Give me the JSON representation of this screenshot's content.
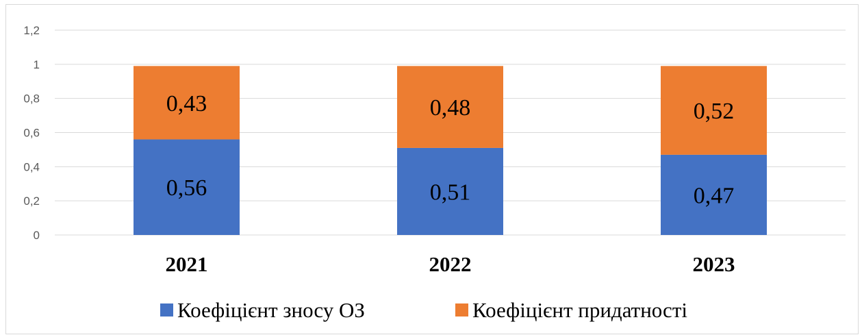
{
  "chart_data": {
    "type": "bar",
    "stacked": true,
    "categories": [
      "2021",
      "2022",
      "2023"
    ],
    "series": [
      {
        "name": "Коефіцієнт зносу ОЗ",
        "values": [
          0.56,
          0.51,
          0.47
        ],
        "labels": [
          "0,56",
          "0,51",
          "0,47"
        ],
        "color": "#4472C4"
      },
      {
        "name": "Коефіцієнт придатності",
        "values": [
          0.43,
          0.48,
          0.52
        ],
        "labels": [
          "0,43",
          "0,48",
          "0,52"
        ],
        "color": "#ED7D31"
      }
    ],
    "ylim": [
      0,
      1.2
    ],
    "yticks": [
      0,
      0.2,
      0.4,
      0.6,
      0.8,
      1,
      1.2
    ],
    "ytick_labels": [
      "0",
      "0,2",
      "0,4",
      "0,6",
      "0,8",
      "1",
      "1,2"
    ],
    "grid": true,
    "legend_position": "bottom",
    "title": "",
    "xlabel": "",
    "ylabel": ""
  }
}
